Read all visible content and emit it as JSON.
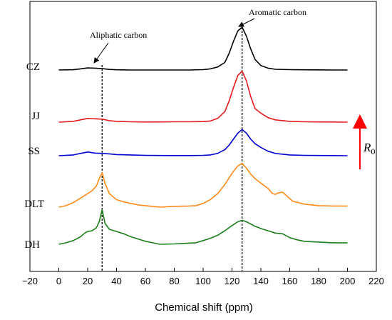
{
  "chart_data": {
    "type": "line",
    "title": "",
    "xlabel": "Chemical shift (ppm)",
    "ylabel": "",
    "xlim": [
      -20,
      220
    ],
    "xticks": [
      -20,
      0,
      20,
      40,
      60,
      80,
      100,
      120,
      140,
      160,
      180,
      200,
      220
    ],
    "grid": false,
    "series": [
      {
        "name": "CZ",
        "color": "#000000",
        "points": [
          [
            0,
            0
          ],
          [
            10,
            0.4
          ],
          [
            15,
            1.5
          ],
          [
            20,
            2.8
          ],
          [
            25,
            2.5
          ],
          [
            30,
            1.8
          ],
          [
            35,
            0.8
          ],
          [
            40,
            0.3
          ],
          [
            50,
            0
          ],
          [
            60,
            0
          ],
          [
            70,
            0
          ],
          [
            80,
            0
          ],
          [
            90,
            0
          ],
          [
            100,
            0.5
          ],
          [
            105,
            1.5
          ],
          [
            110,
            4
          ],
          [
            115,
            10
          ],
          [
            118,
            22
          ],
          [
            121,
            38
          ],
          [
            124,
            52
          ],
          [
            127,
            57
          ],
          [
            130,
            45
          ],
          [
            133,
            28
          ],
          [
            136,
            14
          ],
          [
            140,
            6
          ],
          [
            145,
            2.5
          ],
          [
            150,
            1
          ],
          [
            160,
            0.5
          ],
          [
            170,
            0.3
          ],
          [
            180,
            0.2
          ],
          [
            190,
            0
          ],
          [
            200,
            0
          ]
        ]
      },
      {
        "name": "JJ",
        "color": "#e41a1c",
        "points": [
          [
            0,
            0
          ],
          [
            10,
            1
          ],
          [
            15,
            3
          ],
          [
            20,
            5
          ],
          [
            25,
            4.5
          ],
          [
            30,
            4
          ],
          [
            35,
            2
          ],
          [
            40,
            1
          ],
          [
            50,
            0.5
          ],
          [
            60,
            0.2
          ],
          [
            70,
            0.3
          ],
          [
            80,
            0.5
          ],
          [
            90,
            0.5
          ],
          [
            100,
            0.8
          ],
          [
            105,
            1.5
          ],
          [
            110,
            5
          ],
          [
            115,
            14
          ],
          [
            118,
            28
          ],
          [
            121,
            46
          ],
          [
            124,
            62
          ],
          [
            127,
            68
          ],
          [
            130,
            55
          ],
          [
            133,
            34
          ],
          [
            136,
            18
          ],
          [
            140,
            12
          ],
          [
            145,
            6
          ],
          [
            150,
            3
          ],
          [
            160,
            1
          ],
          [
            170,
            0.5
          ],
          [
            180,
            0.3
          ],
          [
            190,
            0.2
          ],
          [
            200,
            0
          ]
        ]
      },
      {
        "name": "SS",
        "color": "#0000d0",
        "points": [
          [
            0,
            0
          ],
          [
            10,
            1
          ],
          [
            15,
            3
          ],
          [
            20,
            5
          ],
          [
            25,
            3.5
          ],
          [
            30,
            3
          ],
          [
            35,
            2.5
          ],
          [
            40,
            1.5
          ],
          [
            50,
            1
          ],
          [
            60,
            0.5
          ],
          [
            70,
            0.3
          ],
          [
            80,
            0.2
          ],
          [
            90,
            0.2
          ],
          [
            100,
            0.5
          ],
          [
            105,
            1
          ],
          [
            110,
            3
          ],
          [
            115,
            8
          ],
          [
            118,
            14
          ],
          [
            121,
            22
          ],
          [
            124,
            30
          ],
          [
            127,
            35
          ],
          [
            130,
            30
          ],
          [
            133,
            22
          ],
          [
            136,
            16
          ],
          [
            140,
            11
          ],
          [
            145,
            6
          ],
          [
            150,
            3
          ],
          [
            160,
            1
          ],
          [
            170,
            0.5
          ],
          [
            180,
            0.3
          ],
          [
            190,
            0.2
          ],
          [
            200,
            0
          ]
        ]
      },
      {
        "name": "DLT",
        "color": "#ff8c1a",
        "points": [
          [
            0,
            0
          ],
          [
            5,
            2
          ],
          [
            10,
            6
          ],
          [
            15,
            12
          ],
          [
            20,
            18
          ],
          [
            23,
            22
          ],
          [
            26,
            28
          ],
          [
            28,
            38
          ],
          [
            30,
            46
          ],
          [
            32,
            32
          ],
          [
            35,
            18
          ],
          [
            40,
            10
          ],
          [
            45,
            7
          ],
          [
            50,
            5
          ],
          [
            55,
            3
          ],
          [
            60,
            2
          ],
          [
            65,
            1
          ],
          [
            70,
            0
          ],
          [
            80,
            1
          ],
          [
            90,
            1.5
          ],
          [
            95,
            2
          ],
          [
            100,
            5
          ],
          [
            105,
            10
          ],
          [
            110,
            18
          ],
          [
            115,
            30
          ],
          [
            120,
            45
          ],
          [
            124,
            55
          ],
          [
            127,
            58
          ],
          [
            130,
            52
          ],
          [
            133,
            44
          ],
          [
            136,
            38
          ],
          [
            140,
            32
          ],
          [
            145,
            25
          ],
          [
            148,
            18
          ],
          [
            150,
            17
          ],
          [
            152,
            19
          ],
          [
            155,
            20
          ],
          [
            158,
            15
          ],
          [
            162,
            8
          ],
          [
            170,
            4
          ],
          [
            180,
            2
          ],
          [
            190,
            1.5
          ],
          [
            200,
            1.5
          ]
        ]
      },
      {
        "name": "DH",
        "color": "#1a7f1a",
        "points": [
          [
            0,
            0
          ],
          [
            5,
            2
          ],
          [
            10,
            5
          ],
          [
            15,
            10
          ],
          [
            18,
            15
          ],
          [
            20,
            17
          ],
          [
            23,
            18
          ],
          [
            26,
            22
          ],
          [
            28,
            30
          ],
          [
            30,
            46
          ],
          [
            32,
            28
          ],
          [
            35,
            20
          ],
          [
            40,
            17
          ],
          [
            45,
            14
          ],
          [
            50,
            10
          ],
          [
            55,
            7
          ],
          [
            60,
            4
          ],
          [
            65,
            2
          ],
          [
            70,
            0
          ],
          [
            80,
            0.5
          ],
          [
            90,
            1.5
          ],
          [
            95,
            2
          ],
          [
            100,
            5
          ],
          [
            105,
            8
          ],
          [
            110,
            12
          ],
          [
            115,
            18
          ],
          [
            120,
            25
          ],
          [
            124,
            30
          ],
          [
            127,
            32
          ],
          [
            130,
            30
          ],
          [
            133,
            27
          ],
          [
            136,
            24
          ],
          [
            140,
            21
          ],
          [
            145,
            18
          ],
          [
            150,
            15
          ],
          [
            155,
            14
          ],
          [
            160,
            9
          ],
          [
            165,
            6
          ],
          [
            170,
            4
          ],
          [
            180,
            3
          ],
          [
            190,
            2
          ],
          [
            200,
            2
          ]
        ]
      }
    ],
    "series_labels": [
      "CZ",
      "JJ",
      "SS",
      "DLT",
      "DH"
    ],
    "reference_lines": [
      {
        "x": 30,
        "label": "Aliphatic carbon"
      },
      {
        "x": 127,
        "label": "Aromatic carbon"
      }
    ],
    "arrow_label": {
      "base": "R",
      "sub": "0"
    }
  }
}
